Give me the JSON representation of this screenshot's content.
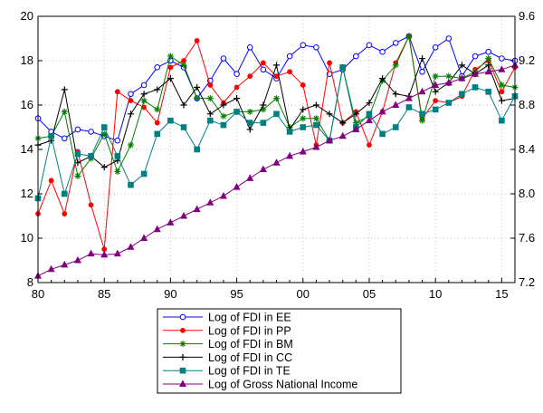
{
  "chart_data": {
    "type": "line",
    "title": "",
    "xlabel": "",
    "ylabel_left": "",
    "ylabel_right": "",
    "x": [
      1980,
      1981,
      1982,
      1983,
      1984,
      1985,
      1986,
      1987,
      1988,
      1989,
      1990,
      1991,
      1992,
      1993,
      1994,
      1995,
      1996,
      1997,
      1998,
      1999,
      2000,
      2001,
      2002,
      2003,
      2004,
      2005,
      2006,
      2007,
      2008,
      2009,
      2010,
      2011,
      2012,
      2013,
      2014,
      2015,
      2016
    ],
    "x_range": [
      1980,
      2016
    ],
    "x_ticks": [
      1980,
      1985,
      1990,
      1995,
      2000,
      2005,
      2010,
      2015
    ],
    "x_tick_labels": [
      "80",
      "85",
      "90",
      "95",
      "00",
      "05",
      "10",
      "15"
    ],
    "y_left": {
      "range": [
        8,
        20
      ],
      "ticks": [
        8,
        10,
        12,
        14,
        16,
        18,
        20
      ],
      "tick_labels": [
        "8",
        "10",
        "12",
        "14",
        "16",
        "18",
        "20"
      ]
    },
    "y_right": {
      "range": [
        7.2,
        9.6
      ],
      "ticks": [
        7.2,
        7.6,
        8.0,
        8.4,
        8.8,
        9.2,
        9.6
      ],
      "tick_labels": [
        "7.2",
        "7.6",
        "8.0",
        "8.4",
        "8.8",
        "9.2",
        "9.6"
      ]
    },
    "grid": true,
    "legend_position": "bottom-center",
    "series": [
      {
        "name": "Log of FDI in EE",
        "axis": "left",
        "color": "#0000ff",
        "marker": "circle",
        "values": [
          15.4,
          14.8,
          14.5,
          14.9,
          14.8,
          14.6,
          14.4,
          16.5,
          16.9,
          17.7,
          18.0,
          17.7,
          16.3,
          17.1,
          18.1,
          17.4,
          18.6,
          17.6,
          17.2,
          18.2,
          18.7,
          18.6,
          17.4,
          17.6,
          18.2,
          18.7,
          18.4,
          18.8,
          19.1,
          17.5,
          18.6,
          19.0,
          17.3,
          18.2,
          18.4,
          18.1,
          18.0
        ]
      },
      {
        "name": "Log of FDI in PP",
        "axis": "left",
        "color": "#ff0000",
        "marker": "dot",
        "values": [
          11.1,
          12.6,
          11.1,
          13.9,
          11.5,
          9.5,
          16.6,
          16.2,
          15.9,
          15.2,
          17.7,
          18.0,
          18.9,
          16.9,
          16.1,
          16.8,
          17.3,
          17.9,
          17.3,
          17.5,
          16.9,
          14.2,
          17.9,
          15.2,
          15.7,
          14.2,
          15.7,
          17.9,
          19.1,
          15.4,
          16.2,
          16.1,
          16.4,
          17.6,
          18.0,
          16.6,
          17.7
        ]
      },
      {
        "name": "Log of FDI in BM",
        "axis": "left",
        "color": "#008000",
        "marker": "asterisk",
        "values": [
          14.5,
          14.6,
          15.7,
          12.8,
          13.6,
          14.7,
          13.0,
          14.2,
          16.2,
          15.8,
          18.2,
          17.8,
          16.3,
          16.3,
          15.5,
          15.7,
          15.7,
          15.8,
          16.3,
          15.0,
          15.4,
          15.4,
          14.4,
          17.7,
          15.2,
          15.5,
          17.1,
          17.8,
          19.1,
          15.3,
          17.3,
          17.3,
          17.2,
          17.5,
          18.1,
          16.9,
          16.8
        ]
      },
      {
        "name": "Log of FDI in CC",
        "axis": "left",
        "color": "#000000",
        "marker": "plus",
        "values": [
          14.2,
          14.4,
          16.7,
          13.4,
          13.7,
          13.2,
          13.5,
          15.6,
          16.5,
          16.7,
          17.2,
          16.0,
          16.8,
          15.6,
          16.0,
          16.3,
          14.9,
          16.0,
          17.8,
          14.9,
          15.8,
          16.0,
          15.6,
          15.2,
          15.6,
          16.1,
          17.2,
          16.5,
          16.4,
          18.1,
          16.6,
          17.0,
          17.8,
          17.4,
          17.8,
          16.2,
          16.3
        ]
      },
      {
        "name": "Log of FDI in TE",
        "axis": "left",
        "color": "#008080",
        "marker": "square",
        "values": [
          11.8,
          14.6,
          12.0,
          13.8,
          13.7,
          15.0,
          13.7,
          12.4,
          12.9,
          14.7,
          15.3,
          15.0,
          14.0,
          15.3,
          15.1,
          15.7,
          15.2,
          15.2,
          15.6,
          14.8,
          15.0,
          15.1,
          14.4,
          17.7,
          15.0,
          15.6,
          14.7,
          15.0,
          15.9,
          15.6,
          15.8,
          16.1,
          16.5,
          16.8,
          16.6,
          15.3,
          16.4
        ]
      },
      {
        "name": "Log of Gross National Income",
        "axis": "right",
        "color": "#800080",
        "marker": "triangle",
        "values": [
          7.26,
          7.32,
          7.36,
          7.4,
          7.46,
          7.45,
          7.46,
          7.52,
          7.6,
          7.68,
          7.74,
          7.8,
          7.86,
          7.92,
          7.98,
          8.06,
          8.14,
          8.22,
          8.28,
          8.34,
          8.38,
          8.42,
          8.48,
          8.52,
          8.58,
          8.66,
          8.74,
          8.8,
          8.86,
          8.92,
          8.98,
          9.0,
          9.04,
          9.08,
          9.1,
          9.12,
          9.16
        ]
      }
    ]
  }
}
